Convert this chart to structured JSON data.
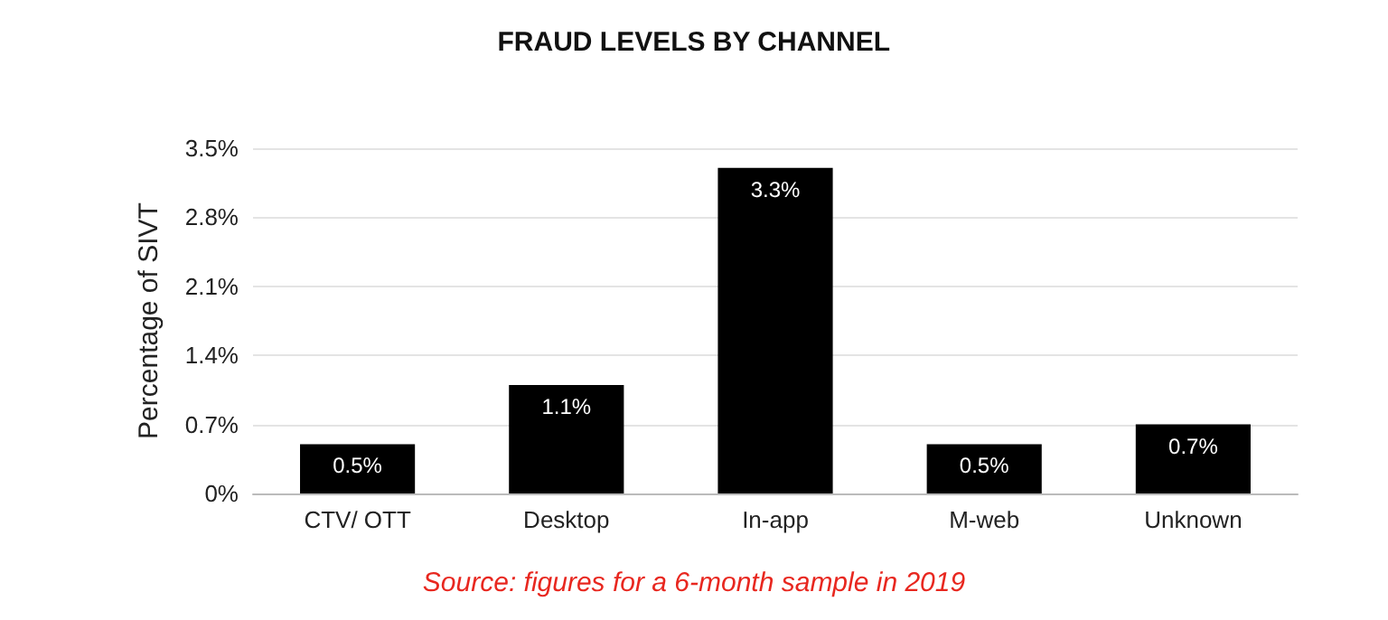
{
  "chart_data": {
    "type": "bar",
    "title": "FRAUD LEVELS BY CHANNEL",
    "ylabel": "Percentage of SIVT",
    "categories": [
      "CTV/ OTT",
      "Desktop",
      "In-app",
      "M-web",
      "Unknown"
    ],
    "values": [
      0.5,
      1.1,
      3.3,
      0.5,
      0.7
    ],
    "color": "#000000",
    "value_labels": [
      "0.5%",
      "1.1%",
      "3.3%",
      "0.5%",
      "0.7%"
    ],
    "ylim": [
      0,
      3.5
    ],
    "yticks": [
      {
        "value": 0,
        "label": "0%"
      },
      {
        "value": 0.7,
        "label": "0.7%"
      },
      {
        "value": 1.4,
        "label": "1.4%"
      },
      {
        "value": 2.1,
        "label": "2.1%"
      },
      {
        "value": 2.8,
        "label": "2.8%"
      },
      {
        "value": 3.5,
        "label": "3.5%"
      }
    ],
    "grid": "y",
    "annotations": [
      "Source: figures for a 6-month sample in 2019"
    ]
  }
}
